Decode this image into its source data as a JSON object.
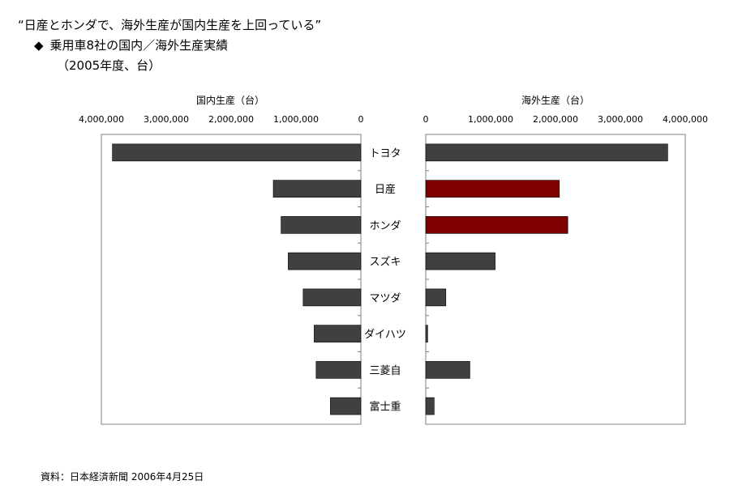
{
  "header": {
    "title": "“日産とホンダで、海外生産が国内生産を上回っている”",
    "bullet_symbol": "◆",
    "subtitle": "乗用車8社の国内／海外生産実績",
    "note": "（2005年度、台）"
  },
  "source": "資料：日本経済新聞 2006年4月25日",
  "colors": {
    "bar_default": "#404040",
    "bar_highlight": "#800000"
  },
  "chart_data": [
    {
      "type": "bar",
      "orientation": "horizontal",
      "direction": "right-to-left",
      "title": "国内生産（台）",
      "categories": [
        "トヨタ",
        "日産",
        "ホンダ",
        "スズキ",
        "マツダ",
        "ダイハツ",
        "三菱自",
        "富士重"
      ],
      "values": [
        3830000,
        1350000,
        1230000,
        1120000,
        890000,
        720000,
        690000,
        470000
      ],
      "xlim": [
        0,
        4000000
      ],
      "ticks": [
        "4,000,000",
        "3,000,000",
        "2,000,000",
        "1,000,000",
        "0"
      ],
      "tick_values": [
        4000000,
        3000000,
        2000000,
        1000000,
        0
      ],
      "grid": false
    },
    {
      "type": "bar",
      "orientation": "horizontal",
      "direction": "left-to-right",
      "title": "海外生産（台）",
      "categories": [
        "トヨタ",
        "日産",
        "ホンダ",
        "スズキ",
        "マツダ",
        "ダイハツ",
        "三菱自",
        "富士重"
      ],
      "values": [
        3730000,
        2060000,
        2190000,
        1070000,
        310000,
        30000,
        680000,
        130000
      ],
      "highlight": [
        "日産",
        "ホンダ"
      ],
      "xlim": [
        0,
        4000000
      ],
      "ticks": [
        "0",
        "1,000,000",
        "2,000,000",
        "3,000,000",
        "4,000,000"
      ],
      "tick_values": [
        0,
        1000000,
        2000000,
        3000000,
        4000000
      ],
      "grid": false
    }
  ]
}
